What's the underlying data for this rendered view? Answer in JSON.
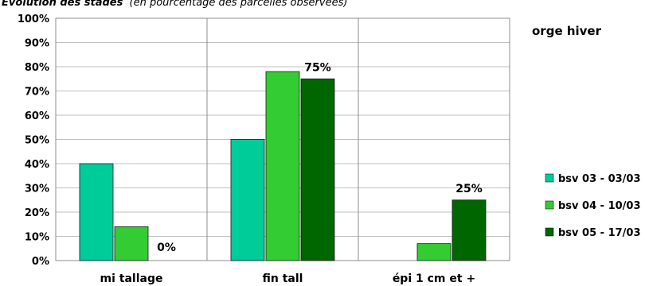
{
  "chart_data": {
    "type": "bar",
    "title": "Evolution des stades",
    "subtitle": "(en pourcentage des parcelles observées)",
    "annotation": "orge hiver",
    "categories": [
      "mi tallage",
      "fin tall",
      "épi 1 cm et +"
    ],
    "series": [
      {
        "name": "bsv 03 - 03/03",
        "color": "#00cc99",
        "values": [
          40,
          50,
          null
        ]
      },
      {
        "name": "bsv 04 - 10/03",
        "color": "#33cc33",
        "values": [
          14,
          78,
          7
        ]
      },
      {
        "name": "bsv 05 - 17/03",
        "color": "#006600",
        "values": [
          0,
          75,
          25
        ]
      }
    ],
    "data_labels": [
      {
        "category": 0,
        "series": 2,
        "text": "0%"
      },
      {
        "category": 1,
        "series": 2,
        "text": "75%"
      },
      {
        "category": 2,
        "series": 2,
        "text": "25%"
      }
    ],
    "ylim": [
      0,
      100
    ],
    "yticks": [
      "0%",
      "10%",
      "20%",
      "30%",
      "40%",
      "50%",
      "60%",
      "70%",
      "80%",
      "90%",
      "100%"
    ],
    "grid": true,
    "legend_position": "right"
  }
}
